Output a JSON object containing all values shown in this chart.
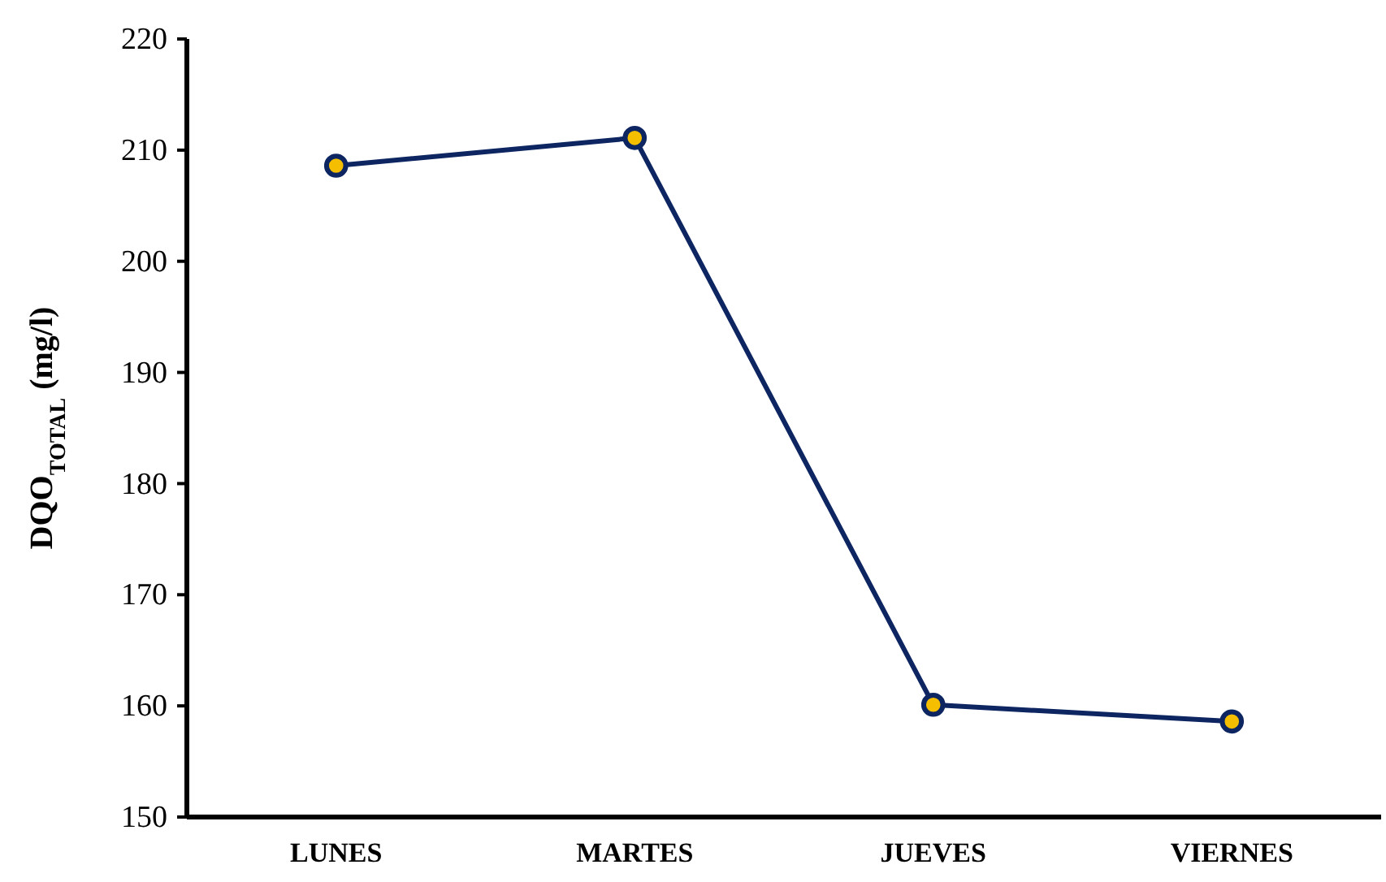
{
  "chart_data": {
    "type": "line",
    "ylabel": "DQO$_{TOTAL}$ (mg/l)",
    "categories": [
      "LUNES",
      "MARTES",
      "JUEVES",
      "VIERNES"
    ],
    "series": [
      {
        "color": "#0d2561",
        "values": [
          208.6,
          211.1,
          160.1,
          158.6
        ]
      }
    ],
    "ylim": [
      150,
      220
    ],
    "yticks": [
      150,
      160,
      170,
      180,
      190,
      200,
      210,
      220
    ],
    "marker": "circle",
    "line_style": "solid"
  }
}
